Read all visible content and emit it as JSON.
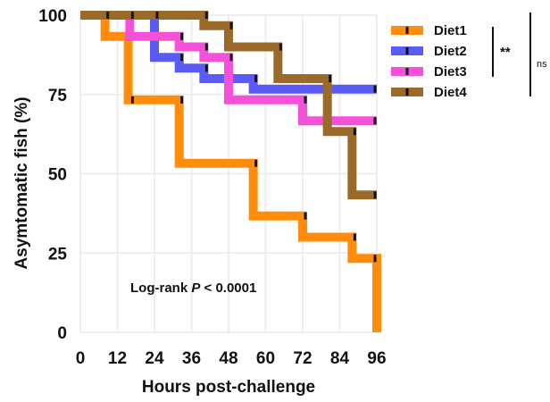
{
  "chart_data": {
    "type": "line",
    "subtype": "kaplan-meier-step",
    "xlabel": "Hours post-challenge",
    "ylabel": "Asymtomatic fish (%)",
    "xlim": [
      0,
      96
    ],
    "ylim": [
      0,
      100
    ],
    "xticks": [
      0,
      12,
      24,
      36,
      48,
      60,
      72,
      84,
      96
    ],
    "yticks": [
      0,
      25,
      50,
      75,
      100
    ],
    "grid": true,
    "legend_position": "right",
    "annotation": {
      "prefix": "Log-rank ",
      "italic": "P",
      "suffix": " < 0.0001"
    },
    "significance": [
      {
        "label": "**",
        "series": [
          "Diet1",
          "Diet4"
        ]
      },
      {
        "label": "ns",
        "series": [
          "Diet1",
          "Diet4"
        ]
      }
    ],
    "series": [
      {
        "name": "Diet1",
        "color": "#ff8c0a",
        "steps": [
          {
            "x": 0,
            "y": 100
          },
          {
            "x": 8,
            "y": 93.3
          },
          {
            "x": 15.5,
            "y": 73.3
          },
          {
            "x": 32,
            "y": 53.3
          },
          {
            "x": 56,
            "y": 36.7
          },
          {
            "x": 72,
            "y": 30
          },
          {
            "x": 88,
            "y": 23.3
          },
          {
            "x": 96,
            "y": 0
          }
        ],
        "censor_x": [
          8,
          16,
          32,
          56,
          72,
          88,
          96
        ]
      },
      {
        "name": "Diet2",
        "color": "#5a5af5",
        "steps": [
          {
            "x": 0,
            "y": 100
          },
          {
            "x": 24,
            "y": 86.7
          },
          {
            "x": 32,
            "y": 83.3
          },
          {
            "x": 40,
            "y": 80
          },
          {
            "x": 56,
            "y": 76.7
          }
        ],
        "end_x": 96,
        "censor_x": [
          24,
          32,
          40,
          56,
          96
        ]
      },
      {
        "name": "Diet3",
        "color": "#f550d8",
        "steps": [
          {
            "x": 0,
            "y": 100
          },
          {
            "x": 16,
            "y": 93.3
          },
          {
            "x": 32,
            "y": 90
          },
          {
            "x": 40,
            "y": 86.7
          },
          {
            "x": 48,
            "y": 73.3
          },
          {
            "x": 72,
            "y": 66.7
          }
        ],
        "end_x": 96,
        "censor_x": [
          16,
          32,
          40,
          48,
          72,
          96
        ]
      },
      {
        "name": "Diet4",
        "color": "#9a6a2a",
        "steps": [
          {
            "x": 0,
            "y": 100
          },
          {
            "x": 40,
            "y": 96.7
          },
          {
            "x": 48,
            "y": 90
          },
          {
            "x": 64,
            "y": 80
          },
          {
            "x": 80,
            "y": 63.3
          },
          {
            "x": 88,
            "y": 43.3
          }
        ],
        "end_x": 96,
        "censor_x": [
          40,
          48,
          64,
          80,
          88,
          96
        ]
      }
    ]
  }
}
